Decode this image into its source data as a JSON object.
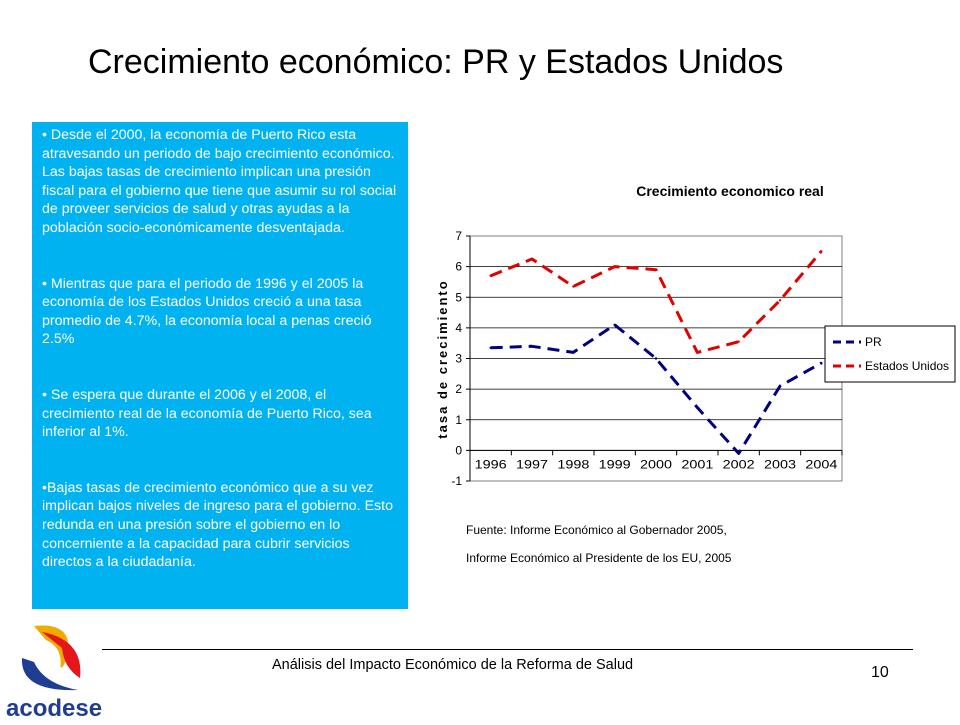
{
  "slide": {
    "title": "Crecimiento  económico: PR y Estados Unidos",
    "bullets": [
      "• Desde el 2000, la economía de Puerto Rico esta atravesando un periodo de bajo crecimiento económico. Las bajas tasas de crecimiento implican una presión fiscal para el gobierno que tiene que asumir su rol social de proveer servicios de salud y otras ayudas a la población socio-económicamente desventajada.",
      "• Mientras que para el periodo de 1996 y el 2005 la economía de los Estados Unidos creció a una tasa promedio de 4.7%, la economía local a penas creció 2.5%",
      "• Se espera que durante el 2006 y el 2008, el crecimiento real de la economía de Puerto Rico, sea inferior al 1%.",
      "•Bajas tasas de crecimiento económico que a su vez  implican bajos niveles de ingreso para el gobierno. Esto redunda en una presión sobre el gobierno en lo concerniente a la capacidad para cubrir servicios directos a la ciudadanía."
    ],
    "source_lines": [
      "Fuente: Informe Económico al Gobernador 2005,",
      "Informe Económico al Presidente de los EU, 2005"
    ],
    "footer": "Análisis del Impacto Económico de la Reforma de Salud",
    "page_number": "10",
    "logo_text": "acodese"
  },
  "colors": {
    "text_box_bg": "#00b3f0",
    "pr_line": "#000080",
    "us_line": "#e00000",
    "plot_bg": "#ffffff"
  },
  "chart_data": {
    "type": "line",
    "title": "Crecimiento economico real",
    "xlabel": "",
    "ylabel": "tasa de crecimiento",
    "categories": [
      "1996",
      "1997",
      "1998",
      "1999",
      "2000",
      "2001",
      "2002",
      "2003",
      "2004"
    ],
    "ylim": [
      -1,
      7
    ],
    "yticks": [
      -1,
      0,
      1,
      2,
      3,
      4,
      5,
      6,
      7
    ],
    "grid": true,
    "legend_position": "right",
    "series": [
      {
        "name": "PR",
        "values": [
          3.35,
          3.4,
          3.2,
          4.1,
          3.0,
          1.4,
          -0.1,
          2.1,
          2.85
        ],
        "color": "#000080",
        "dash": "dashed"
      },
      {
        "name": "Estados Unidos",
        "values": [
          5.7,
          6.25,
          5.35,
          6.0,
          5.9,
          3.2,
          3.55,
          4.9,
          6.5
        ],
        "color": "#e00000",
        "dash": "dashed"
      }
    ]
  }
}
